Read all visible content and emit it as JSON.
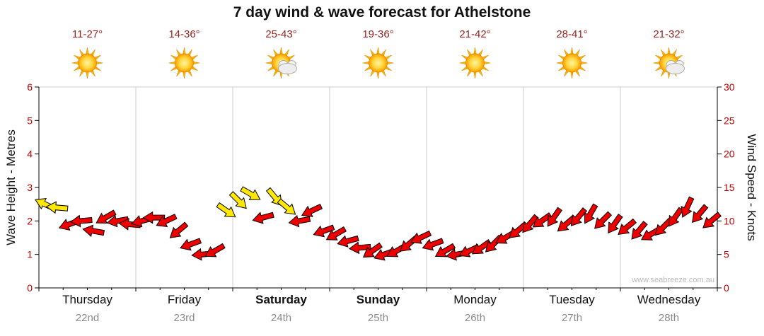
{
  "title": "7 day wind & wave forecast for Athelstone",
  "watermark": "www.seabreeze.com.au",
  "chart_data": {
    "type": "wind-arrows",
    "left_axis": {
      "label": "Wave Height - Metres",
      "ticks": [
        0,
        1,
        2,
        3,
        4,
        5,
        6
      ],
      "range": [
        0,
        6
      ]
    },
    "right_axis": {
      "label": "Wind Speed - Knots",
      "ticks": [
        0,
        5,
        10,
        15,
        20,
        25,
        30
      ],
      "range": [
        0,
        30
      ]
    },
    "days": [
      {
        "name": "Thursday",
        "date": "22nd",
        "temp": "11-27°",
        "icon": "sunny",
        "weekend": false
      },
      {
        "name": "Friday",
        "date": "23rd",
        "temp": "14-36°",
        "icon": "sunny",
        "weekend": false
      },
      {
        "name": "Saturday",
        "date": "24th",
        "temp": "25-43°",
        "icon": "partly-cloudy",
        "weekend": true
      },
      {
        "name": "Sunday",
        "date": "25th",
        "temp": "19-36°",
        "icon": "sunny",
        "weekend": true
      },
      {
        "name": "Monday",
        "date": "26th",
        "temp": "21-42°",
        "icon": "sunny",
        "weekend": false
      },
      {
        "name": "Tuesday",
        "date": "27th",
        "temp": "28-41°",
        "icon": "sunny",
        "weekend": false
      },
      {
        "name": "Wednesday",
        "date": "28th",
        "temp": "21-32°",
        "icon": "partly-cloudy",
        "weekend": false
      }
    ],
    "points_per_day": 8,
    "wind": {
      "speeds_knots": [
        12.5,
        12,
        9.5,
        10,
        8.5,
        10.5,
        10,
        9.5,
        10,
        10.5,
        10,
        8.5,
        6.5,
        5,
        5.5,
        11.5,
        13,
        14,
        10.5,
        13.5,
        12,
        10,
        11.5,
        8.5,
        8,
        7,
        6,
        5.5,
        5,
        5.5,
        6.5,
        7.5,
        6.5,
        5.5,
        5,
        5.5,
        6,
        6.5,
        7.5,
        8.5,
        9.5,
        10,
        10.5,
        9.5,
        10.5,
        11,
        10,
        9.5,
        9,
        8.5,
        8,
        9,
        10.5,
        12,
        11,
        10
      ],
      "directions_deg": [
        205,
        185,
        160,
        175,
        190,
        150,
        170,
        185,
        165,
        180,
        155,
        140,
        160,
        175,
        150,
        35,
        45,
        30,
        165,
        50,
        40,
        170,
        155,
        160,
        150,
        165,
        175,
        145,
        160,
        150,
        140,
        155,
        160,
        150,
        170,
        155,
        145,
        135,
        150,
        140,
        130,
        145,
        125,
        140,
        130,
        120,
        135,
        125,
        140,
        130,
        150,
        135,
        125,
        115,
        130,
        140
      ],
      "colors": "YYRRRRRRRRRRRRRYYYRYYRRRRRRRRRRRRRRRRRRRRRRRRRRRRRRRRRRR"
    },
    "colors": {
      "arrow_strong": "#ee0000",
      "arrow_light": "#ffe800",
      "tick_text": "#bb0000",
      "grid": "#cccccc",
      "axis": "#000000",
      "temp_text": "#992222",
      "date_text": "#8a8a8a",
      "sun": "#ffb400"
    }
  }
}
